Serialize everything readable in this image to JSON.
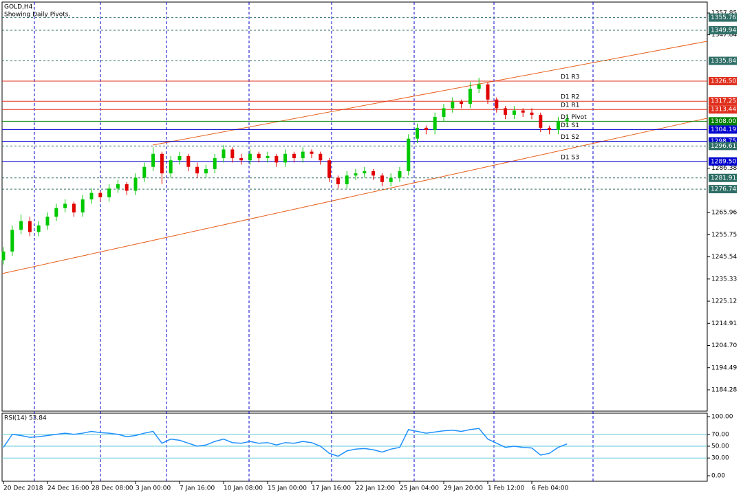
{
  "chart_data": [
    {
      "type": "candlestick",
      "title": "GOLD,H4",
      "subtitle": "Showing Daily Pivots.",
      "categories": [
        "20 Dec 2018",
        null,
        null,
        null,
        null,
        "24 Dec 16:00",
        null,
        null,
        null,
        null,
        "28 Dec 08:00",
        null,
        null,
        null,
        null,
        "3 Jan 00:00",
        null,
        null,
        null,
        null,
        "7 Jan 16:00",
        null,
        null,
        null,
        null,
        "10 Jan 08:00",
        null,
        null,
        null,
        null,
        "15 Jan 00:00",
        null,
        null,
        null,
        null,
        "17 Jan 16:00",
        null,
        null,
        null,
        null,
        "22 Jan 12:00",
        null,
        null,
        null,
        null,
        "25 Jan 04:00",
        null,
        null,
        null,
        null,
        "29 Jan 20:00",
        null,
        null,
        null,
        null,
        "1 Feb 12:00",
        null,
        null,
        null,
        null,
        "6 Feb 04:00",
        null,
        null,
        null,
        null
      ],
      "open": [
        1244,
        1248,
        1258,
        1262,
        1257,
        1260,
        1264,
        1268,
        1270,
        1266,
        1272,
        1275,
        1273,
        1277,
        1279,
        1276,
        1282,
        1287,
        1293,
        1284,
        1290,
        1292,
        1287,
        1284,
        1286,
        1291,
        1295,
        1291,
        1290,
        1293,
        1291,
        1292,
        1289,
        1293,
        1291,
        1294,
        1293,
        1290,
        1282,
        1279,
        1283,
        1284,
        1285,
        1283,
        1280,
        1282,
        1285,
        1300,
        1305,
        1304,
        1310,
        1314,
        1317,
        1316,
        1323,
        1325,
        1318,
        1314,
        1311,
        1313,
        1312,
        1311,
        1305,
        1304,
        1308
      ],
      "high": [
        1250,
        1260,
        1265,
        1264,
        1262,
        1266,
        1270,
        1272,
        1271,
        1274,
        1277,
        1276,
        1279,
        1281,
        1280,
        1284,
        1289,
        1296,
        1294,
        1292,
        1294,
        1293,
        1289,
        1288,
        1293,
        1297,
        1296,
        1293,
        1295,
        1294,
        1294,
        1293,
        1295,
        1294,
        1296,
        1295,
        1294,
        1291,
        1283,
        1285,
        1286,
        1287,
        1286,
        1284,
        1284,
        1287,
        1302,
        1307,
        1306,
        1312,
        1316,
        1319,
        1318,
        1326,
        1328,
        1326,
        1319,
        1315,
        1315,
        1314,
        1314,
        1312,
        1306,
        1310,
        1311
      ],
      "low": [
        1242,
        1246,
        1256,
        1255,
        1255,
        1258,
        1262,
        1266,
        1264,
        1264,
        1270,
        1271,
        1271,
        1275,
        1274,
        1274,
        1280,
        1285,
        1279,
        1282,
        1288,
        1285,
        1282,
        1282,
        1284,
        1289,
        1289,
        1288,
        1288,
        1289,
        1289,
        1287,
        1287,
        1289,
        1289,
        1291,
        1288,
        1280,
        1277,
        1277,
        1281,
        1282,
        1281,
        1278,
        1278,
        1280,
        1283,
        1298,
        1302,
        1302,
        1308,
        1312,
        1314,
        1314,
        1321,
        1316,
        1312,
        1309,
        1309,
        1310,
        1309,
        1303,
        1302,
        1302,
        1306
      ],
      "close": [
        1248,
        1258,
        1262,
        1257,
        1260,
        1264,
        1268,
        1270,
        1266,
        1272,
        1275,
        1273,
        1277,
        1279,
        1276,
        1282,
        1287,
        1293,
        1284,
        1290,
        1292,
        1287,
        1284,
        1286,
        1291,
        1295,
        1291,
        1290,
        1293,
        1291,
        1292,
        1289,
        1293,
        1291,
        1294,
        1293,
        1290,
        1282,
        1279,
        1283,
        1284,
        1285,
        1283,
        1280,
        1282,
        1285,
        1300,
        1305,
        1304,
        1310,
        1314,
        1317,
        1316,
        1323,
        1325,
        1318,
        1314,
        1311,
        1313,
        1312,
        1311,
        1305,
        1304,
        1308,
        1309
      ],
      "up_color": "#00c800",
      "down_color": "#e00000",
      "ylim": [
        1174.46,
        1362.92
      ],
      "yticks": [
        1357.85,
        1347.84,
        1286.38,
        1265.96,
        1255.75,
        1245.54,
        1235.33,
        1225.12,
        1214.91,
        {
          "value": 1204.7,
          "label": "1204.70"
        },
        1194.49,
        1184.28
      ],
      "levels": [
        {
          "value": 1355.76,
          "label": "1355.76",
          "color": "#2e6e66",
          "style": "dashed"
        },
        {
          "value": 1349.94,
          "label": "1349.94",
          "color": "#2e6e66",
          "style": "dashed"
        },
        {
          "value": 1335.84,
          "label": "1335.84",
          "color": "#2e6e66",
          "style": "dashed"
        },
        {
          "value": 1326.5,
          "label": "1326.50",
          "name": "D1 R3",
          "color": "#e0301e",
          "style": "solid"
        },
        {
          "value": 1317.25,
          "label": "1317.25",
          "name": "D1 R2",
          "color": "#e0301e",
          "style": "solid"
        },
        {
          "value": 1313.44,
          "label": "1313.44",
          "name": "D1 R1",
          "color": "#e0301e",
          "style": "solid"
        },
        {
          "value": 1308,
          "label": "1308.00",
          "name": "D1 Pivot",
          "color": "#008000",
          "style": "solid"
        },
        {
          "value": 1304.19,
          "label": "1304.19",
          "name": "D1 S1",
          "color": "#0000cd",
          "style": "solid"
        },
        {
          "value": 1298.75,
          "label": "1298.75",
          "name": "D1 S2",
          "color": "#0000cd",
          "style": "solid"
        },
        {
          "value": 1296.61,
          "label": "1296.61",
          "color": "#2e6e66",
          "style": "dashed"
        },
        {
          "value": 1289.5,
          "label": "1289.50",
          "name": "D1 S3",
          "color": "#0000cd",
          "style": "solid"
        },
        {
          "value": 1281.91,
          "label": "1281.91",
          "color": "#2e6e66",
          "style": "dashed"
        },
        {
          "value": 1276.74,
          "label": "1276.74",
          "color": "#2e6e66",
          "style": "dashed"
        }
      ]
    },
    {
      "type": "line",
      "title": "RSI(14) 53.84",
      "color": "#1e90ff",
      "values": [
        48,
        70,
        68,
        65,
        66,
        68,
        70,
        72,
        70,
        72,
        75,
        73,
        72,
        70,
        66,
        68,
        72,
        75,
        55,
        62,
        60,
        55,
        50,
        52,
        58,
        62,
        56,
        55,
        58,
        55,
        56,
        52,
        56,
        55,
        58,
        56,
        50,
        38,
        33,
        42,
        45,
        46,
        44,
        40,
        45,
        48,
        78,
        75,
        72,
        74,
        76,
        77,
        75,
        78,
        80,
        62,
        55,
        48,
        50,
        48,
        47,
        35,
        38,
        48,
        53.84
      ],
      "ylim": [
        -9.3,
        105.8
      ],
      "yticks": [
        {
          "value": 100,
          "label": "100.00"
        },
        {
          "value": 70,
          "label": "70.00"
        },
        {
          "value": 50,
          "label": "50.00"
        },
        {
          "value": 30,
          "label": "30.00"
        },
        {
          "value": 0,
          "label": "0.00"
        }
      ],
      "hlines": [
        70,
        50,
        30
      ],
      "hline_color": "#5fc8d8"
    }
  ]
}
